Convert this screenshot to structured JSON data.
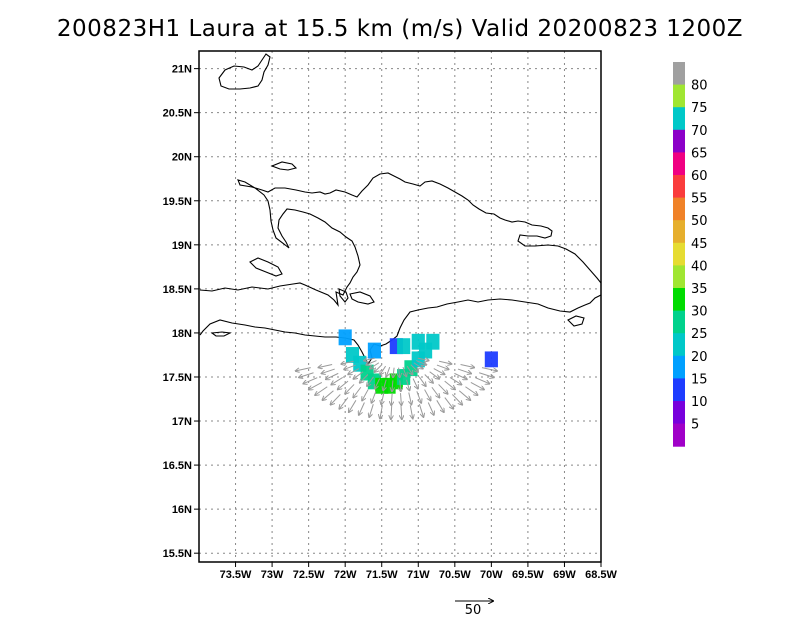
{
  "title": "200823H1 Laura at 15.5 km (m/s) Valid 20200823 1200Z",
  "chart_data": {
    "type": "heatmap",
    "title": "200823H1 Laura at 15.5 km (m/s) Valid 20200823 1200Z",
    "xlim": [
      -74.0,
      -68.5
    ],
    "ylim": [
      15.4,
      21.2
    ],
    "grid": true,
    "x_ticks": [
      {
        "value": -73.5,
        "label": "73.5W"
      },
      {
        "value": -73.0,
        "label": "73W"
      },
      {
        "value": -72.5,
        "label": "72.5W"
      },
      {
        "value": -72.0,
        "label": "72W"
      },
      {
        "value": -71.5,
        "label": "71.5W"
      },
      {
        "value": -71.0,
        "label": "71W"
      },
      {
        "value": -70.5,
        "label": "70.5W"
      },
      {
        "value": -70.0,
        "label": "70W"
      },
      {
        "value": -69.5,
        "label": "69.5W"
      },
      {
        "value": -69.0,
        "label": "69W"
      },
      {
        "value": -68.5,
        "label": "68.5W"
      }
    ],
    "y_ticks": [
      {
        "value": 15.5,
        "label": "15.5N"
      },
      {
        "value": 16.0,
        "label": "16N"
      },
      {
        "value": 16.5,
        "label": "16.5N"
      },
      {
        "value": 17.0,
        "label": "17N"
      },
      {
        "value": 17.5,
        "label": "17.5N"
      },
      {
        "value": 18.0,
        "label": "18N"
      },
      {
        "value": 18.5,
        "label": "18.5N"
      },
      {
        "value": 19.0,
        "label": "19N"
      },
      {
        "value": 19.5,
        "label": "19.5N"
      },
      {
        "value": 20.0,
        "label": "20N"
      },
      {
        "value": 20.5,
        "label": "20.5N"
      },
      {
        "value": 21.0,
        "label": "21N"
      }
    ],
    "colorbar": {
      "labels": [
        "5",
        "10",
        "15",
        "20",
        "25",
        "30",
        "35",
        "40",
        "45",
        "50",
        "55",
        "60",
        "65",
        "70",
        "75",
        "80"
      ],
      "colors": [
        "#a000c8",
        "#7800dc",
        "#1e3cff",
        "#00a0ff",
        "#00c8c8",
        "#00d28c",
        "#00dc00",
        "#a0e632",
        "#e6dc32",
        "#e6af2d",
        "#f08228",
        "#fa3c3c",
        "#f00082",
        "#8c00c8",
        "#00c8c8",
        "#a0e632",
        "#a0a0a0"
      ]
    },
    "wind_field": {
      "center": {
        "lon": -71.3,
        "lat": 17.75
      },
      "shaded_cells": [
        {
          "lon": -71.9,
          "lat": 17.75,
          "speed": 22
        },
        {
          "lon": -71.8,
          "lat": 17.65,
          "speed": 24
        },
        {
          "lon": -71.7,
          "lat": 17.55,
          "speed": 26
        },
        {
          "lon": -71.6,
          "lat": 17.45,
          "speed": 28
        },
        {
          "lon": -71.5,
          "lat": 17.4,
          "speed": 30
        },
        {
          "lon": -71.4,
          "lat": 17.4,
          "speed": 33
        },
        {
          "lon": -71.3,
          "lat": 17.45,
          "speed": 30
        },
        {
          "lon": -71.2,
          "lat": 17.5,
          "speed": 28
        },
        {
          "lon": -71.1,
          "lat": 17.6,
          "speed": 26
        },
        {
          "lon": -71.0,
          "lat": 17.7,
          "speed": 24
        },
        {
          "lon": -70.9,
          "lat": 17.8,
          "speed": 22
        },
        {
          "lon": -71.6,
          "lat": 17.8,
          "speed": 18
        },
        {
          "lon": -71.3,
          "lat": 17.85,
          "speed": 12
        },
        {
          "lon": -71.0,
          "lat": 17.9,
          "speed": 20
        },
        {
          "lon": -70.8,
          "lat": 17.9,
          "speed": 22
        },
        {
          "lon": -71.2,
          "lat": 17.85,
          "speed": 70
        },
        {
          "lon": -70.0,
          "lat": 17.7,
          "speed": 14
        },
        {
          "lon": -72.0,
          "lat": 17.95,
          "speed": 18
        }
      ]
    },
    "reference_vector": {
      "value": 50,
      "label": "50"
    }
  }
}
